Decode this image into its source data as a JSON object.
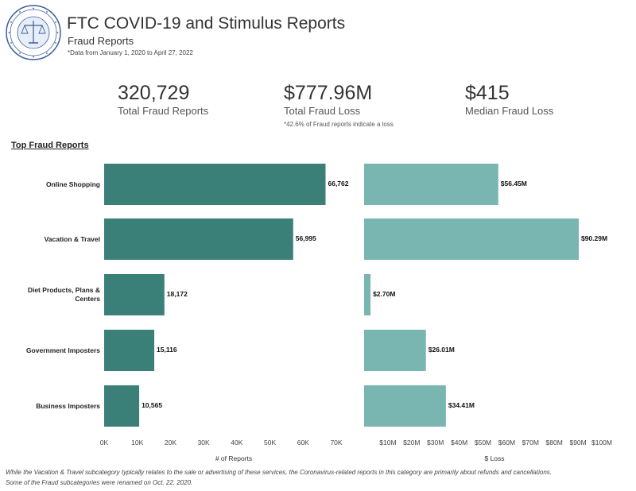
{
  "header": {
    "title": "FTC COVID-19 and Stimulus Reports",
    "subtitle": "Fraud Reports",
    "note": "*Data from January 1, 2020 to April 27, 2022"
  },
  "kpis": [
    {
      "value": "320,729",
      "label": "Total Fraud Reports"
    },
    {
      "value": "$777.96M",
      "label": "Total Fraud Loss",
      "note": "*42.6% of Fraud reports indicate a loss"
    },
    {
      "value": "$415",
      "label": "Median Fraud Loss"
    }
  ],
  "section_title": "Top Fraud Reports",
  "colors": {
    "reports_bar": "#3b7f79",
    "loss_bar": "#79b5b1"
  },
  "chart_data": [
    {
      "type": "bar",
      "orientation": "horizontal",
      "categories": [
        "Online Shopping",
        "Vacation & Travel",
        "Diet Products, Plans & Centers",
        "Government Imposters",
        "Business Imposters"
      ],
      "values": [
        66762,
        56995,
        18172,
        15116,
        10565
      ],
      "data_labels": [
        "66,762",
        "56,995",
        "18,172",
        "15,116",
        "10,565"
      ],
      "xlabel": "# of Reports",
      "xlim": [
        0,
        70000
      ],
      "ticks": [
        0,
        10000,
        20000,
        30000,
        40000,
        50000,
        60000,
        70000
      ],
      "tick_labels": [
        "0K",
        "10K",
        "20K",
        "30K",
        "40K",
        "50K",
        "60K",
        "70K"
      ],
      "grid": false
    },
    {
      "type": "bar",
      "orientation": "horizontal",
      "categories": [
        "Online Shopping",
        "Vacation & Travel",
        "Diet Products, Plans & Centers",
        "Government Imposters",
        "Business Imposters"
      ],
      "values": [
        56.45,
        90.29,
        2.7,
        26.01,
        34.41
      ],
      "data_labels": [
        "$56.45M",
        "$90.29M",
        "$2.70M",
        "$26.01M",
        "$34.41M"
      ],
      "xlabel": "$ Loss",
      "xlim": [
        0,
        100
      ],
      "ticks": [
        10,
        20,
        30,
        40,
        50,
        60,
        70,
        80,
        90,
        100
      ],
      "tick_labels": [
        "$10M",
        "$20M",
        "$30M",
        "$40M",
        "$50M",
        "$60M",
        "$70M",
        "$80M",
        "$90M",
        "$100M"
      ],
      "grid": false
    }
  ],
  "footnotes": [
    "While the Vacation & Travel subcategory typically relates to the sale or advertising of these services, the Coronavirus-related reports in this category are primarily about refunds and cancellations.",
    "Some of the Fraud subcategories were renamed on Oct. 22, 2020."
  ]
}
